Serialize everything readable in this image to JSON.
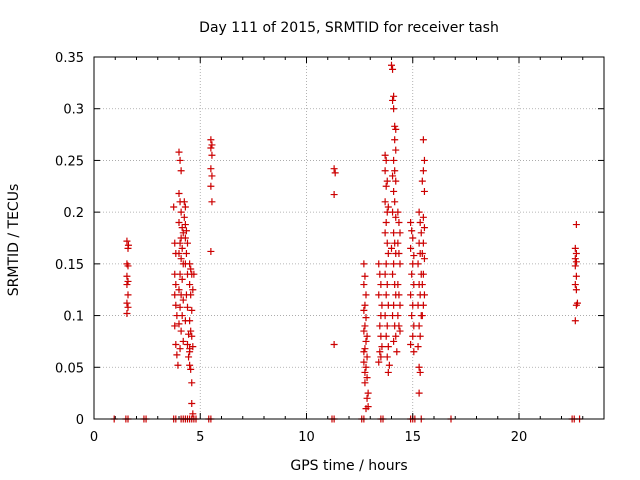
{
  "chart_data": {
    "type": "scatter",
    "title": "Day 111 of 2015, SRMTID for receiver tash",
    "xlabel": "GPS time / hours",
    "ylabel": "SRMTID / TECUs",
    "xlim": [
      0,
      24
    ],
    "ylim": [
      0,
      0.35
    ],
    "x_ticks": [
      0,
      5,
      10,
      15,
      20
    ],
    "x_tick_labels": [
      "0",
      "5",
      "10",
      "15",
      "20"
    ],
    "y_ticks": [
      0,
      0.05,
      0.1,
      0.15,
      0.2,
      0.25,
      0.3,
      0.35
    ],
    "y_tick_labels": [
      "0",
      "0.05",
      "0.1",
      "0.15",
      "0.2",
      "0.25",
      "0.3",
      "0.35"
    ],
    "grid": true,
    "marker": "+",
    "series": [
      {
        "name": "SRMTID",
        "color": "#cc0000",
        "points": [
          [
            0.95,
            0
          ],
          [
            1.5,
            0
          ],
          [
            1.6,
            0
          ],
          [
            2.35,
            0
          ],
          [
            2.45,
            0
          ],
          [
            3.75,
            0
          ],
          [
            3.85,
            0
          ],
          [
            4.1,
            0
          ],
          [
            4.2,
            0
          ],
          [
            4.3,
            0
          ],
          [
            4.4,
            0
          ],
          [
            4.5,
            0
          ],
          [
            4.6,
            0
          ],
          [
            4.7,
            0
          ],
          [
            4.8,
            0
          ],
          [
            5.4,
            0
          ],
          [
            5.5,
            0
          ],
          [
            11.2,
            0
          ],
          [
            11.3,
            0
          ],
          [
            12.6,
            0
          ],
          [
            12.7,
            0
          ],
          [
            13.5,
            0
          ],
          [
            13.6,
            0
          ],
          [
            14.9,
            0
          ],
          [
            15.0,
            0
          ],
          [
            15.1,
            0
          ],
          [
            15.4,
            0
          ],
          [
            16.8,
            0
          ],
          [
            22.5,
            0
          ],
          [
            22.6,
            0
          ],
          [
            22.85,
            0
          ],
          [
            1.55,
            0.172
          ],
          [
            1.6,
            0.165
          ],
          [
            1.55,
            0.15
          ],
          [
            1.6,
            0.148
          ],
          [
            1.55,
            0.138
          ],
          [
            1.6,
            0.133
          ],
          [
            1.55,
            0.13
          ],
          [
            1.6,
            0.12
          ],
          [
            1.55,
            0.112
          ],
          [
            1.6,
            0.108
          ],
          [
            1.55,
            0.102
          ],
          [
            1.62,
            0.168
          ],
          [
            3.75,
            0.205
          ],
          [
            3.8,
            0.17
          ],
          [
            3.85,
            0.16
          ],
          [
            3.8,
            0.14
          ],
          [
            3.85,
            0.13
          ],
          [
            3.8,
            0.12
          ],
          [
            3.85,
            0.11
          ],
          [
            3.9,
            0.1
          ],
          [
            3.8,
            0.09
          ],
          [
            3.85,
            0.072
          ],
          [
            3.9,
            0.062
          ],
          [
            3.95,
            0.052
          ],
          [
            4.0,
            0.258
          ],
          [
            4.05,
            0.25
          ],
          [
            4.1,
            0.24
          ],
          [
            4.0,
            0.218
          ],
          [
            4.05,
            0.21
          ],
          [
            4.1,
            0.2
          ],
          [
            4.0,
            0.19
          ],
          [
            4.15,
            0.185
          ],
          [
            4.2,
            0.18
          ],
          [
            4.1,
            0.175
          ],
          [
            4.05,
            0.17
          ],
          [
            4.15,
            0.165
          ],
          [
            4.0,
            0.16
          ],
          [
            4.1,
            0.155
          ],
          [
            4.2,
            0.15
          ],
          [
            4.05,
            0.14
          ],
          [
            4.15,
            0.135
          ],
          [
            4.0,
            0.125
          ],
          [
            4.1,
            0.12
          ],
          [
            4.2,
            0.115
          ],
          [
            4.05,
            0.108
          ],
          [
            4.15,
            0.1
          ],
          [
            4.0,
            0.092
          ],
          [
            4.1,
            0.085
          ],
          [
            4.2,
            0.075
          ],
          [
            4.05,
            0.068
          ],
          [
            4.25,
            0.21
          ],
          [
            4.3,
            0.205
          ],
          [
            4.25,
            0.195
          ],
          [
            4.3,
            0.188
          ],
          [
            4.35,
            0.182
          ],
          [
            4.3,
            0.175
          ],
          [
            4.4,
            0.17
          ],
          [
            4.35,
            0.16
          ],
          [
            4.3,
            0.15
          ],
          [
            4.4,
            0.14
          ],
          [
            4.35,
            0.12
          ],
          [
            4.4,
            0.108
          ],
          [
            4.3,
            0.095
          ],
          [
            4.45,
            0.082
          ],
          [
            4.4,
            0.072
          ],
          [
            4.5,
            0.068
          ],
          [
            4.45,
            0.06
          ],
          [
            4.5,
            0.052
          ],
          [
            4.55,
            0.048
          ],
          [
            4.6,
            0.035
          ],
          [
            4.6,
            0.015
          ],
          [
            4.65,
            0.005
          ],
          [
            4.5,
            0.15
          ],
          [
            4.55,
            0.145
          ],
          [
            4.6,
            0.14
          ],
          [
            4.5,
            0.13
          ],
          [
            4.55,
            0.12
          ],
          [
            4.6,
            0.105
          ],
          [
            4.5,
            0.095
          ],
          [
            4.55,
            0.085
          ],
          [
            4.6,
            0.08
          ],
          [
            4.65,
            0.07
          ],
          [
            4.5,
            0.065
          ],
          [
            4.7,
            0.14
          ],
          [
            4.65,
            0.125
          ],
          [
            5.5,
            0.27
          ],
          [
            5.55,
            0.265
          ],
          [
            5.5,
            0.262
          ],
          [
            5.55,
            0.255
          ],
          [
            5.5,
            0.242
          ],
          [
            5.55,
            0.235
          ],
          [
            5.5,
            0.225
          ],
          [
            5.55,
            0.21
          ],
          [
            5.5,
            0.162
          ],
          [
            11.3,
            0.242
          ],
          [
            11.35,
            0.238
          ],
          [
            11.3,
            0.217
          ],
          [
            11.3,
            0.072
          ],
          [
            12.7,
            0.15
          ],
          [
            12.75,
            0.138
          ],
          [
            12.7,
            0.13
          ],
          [
            12.8,
            0.12
          ],
          [
            12.75,
            0.11
          ],
          [
            12.7,
            0.105
          ],
          [
            12.8,
            0.098
          ],
          [
            12.75,
            0.09
          ],
          [
            12.7,
            0.085
          ],
          [
            12.85,
            0.08
          ],
          [
            12.8,
            0.075
          ],
          [
            12.75,
            0.068
          ],
          [
            12.85,
            0.06
          ],
          [
            12.7,
            0.055
          ],
          [
            12.8,
            0.05
          ],
          [
            12.85,
            0.04
          ],
          [
            12.75,
            0.035
          ],
          [
            12.9,
            0.025
          ],
          [
            12.85,
            0.02
          ],
          [
            12.9,
            0.012
          ],
          [
            12.8,
            0.01
          ],
          [
            12.7,
            0.065
          ],
          [
            12.75,
            0.045
          ],
          [
            13.4,
            0.15
          ],
          [
            13.45,
            0.14
          ],
          [
            13.5,
            0.13
          ],
          [
            13.4,
            0.12
          ],
          [
            13.55,
            0.11
          ],
          [
            13.5,
            0.1
          ],
          [
            13.45,
            0.09
          ],
          [
            13.5,
            0.08
          ],
          [
            13.55,
            0.07
          ],
          [
            13.45,
            0.065
          ],
          [
            13.5,
            0.06
          ],
          [
            13.4,
            0.055
          ],
          [
            13.7,
            0.255
          ],
          [
            13.75,
            0.25
          ],
          [
            13.7,
            0.24
          ],
          [
            13.8,
            0.23
          ],
          [
            13.75,
            0.225
          ],
          [
            13.7,
            0.21
          ],
          [
            13.85,
            0.205
          ],
          [
            13.8,
            0.2
          ],
          [
            13.75,
            0.19
          ],
          [
            13.7,
            0.18
          ],
          [
            13.8,
            0.17
          ],
          [
            13.85,
            0.16
          ],
          [
            13.75,
            0.15
          ],
          [
            13.7,
            0.14
          ],
          [
            13.8,
            0.13
          ],
          [
            13.75,
            0.12
          ],
          [
            13.85,
            0.11
          ],
          [
            13.7,
            0.1
          ],
          [
            13.8,
            0.09
          ],
          [
            13.75,
            0.08
          ],
          [
            13.85,
            0.07
          ],
          [
            13.8,
            0.06
          ],
          [
            13.9,
            0.052
          ],
          [
            13.85,
            0.045
          ],
          [
            14.0,
            0.342
          ],
          [
            14.05,
            0.338
          ],
          [
            14.1,
            0.312
          ],
          [
            14.05,
            0.308
          ],
          [
            14.1,
            0.3
          ],
          [
            14.15,
            0.283
          ],
          [
            14.2,
            0.28
          ],
          [
            14.15,
            0.27
          ],
          [
            14.2,
            0.26
          ],
          [
            14.1,
            0.25
          ],
          [
            14.15,
            0.24
          ],
          [
            14.05,
            0.235
          ],
          [
            14.2,
            0.23
          ],
          [
            14.1,
            0.22
          ],
          [
            14.15,
            0.21
          ],
          [
            14.05,
            0.2
          ],
          [
            14.2,
            0.195
          ],
          [
            14.1,
            0.18
          ],
          [
            14.15,
            0.17
          ],
          [
            14.0,
            0.165
          ],
          [
            14.2,
            0.16
          ],
          [
            14.1,
            0.15
          ],
          [
            14.05,
            0.14
          ],
          [
            14.15,
            0.13
          ],
          [
            14.2,
            0.12
          ],
          [
            14.1,
            0.11
          ],
          [
            14.05,
            0.1
          ],
          [
            14.15,
            0.09
          ],
          [
            14.2,
            0.08
          ],
          [
            14.1,
            0.075
          ],
          [
            14.25,
            0.065
          ],
          [
            14.3,
            0.2
          ],
          [
            14.35,
            0.19
          ],
          [
            14.4,
            0.18
          ],
          [
            14.3,
            0.17
          ],
          [
            14.35,
            0.16
          ],
          [
            14.4,
            0.15
          ],
          [
            14.3,
            0.13
          ],
          [
            14.35,
            0.12
          ],
          [
            14.4,
            0.11
          ],
          [
            14.3,
            0.1
          ],
          [
            14.35,
            0.09
          ],
          [
            14.4,
            0.085
          ],
          [
            14.9,
            0.19
          ],
          [
            14.95,
            0.182
          ],
          [
            15.0,
            0.175
          ],
          [
            14.9,
            0.165
          ],
          [
            15.05,
            0.158
          ],
          [
            15.0,
            0.15
          ],
          [
            14.95,
            0.14
          ],
          [
            15.05,
            0.13
          ],
          [
            14.9,
            0.12
          ],
          [
            15.0,
            0.11
          ],
          [
            14.95,
            0.1
          ],
          [
            15.05,
            0.09
          ],
          [
            15.0,
            0.08
          ],
          [
            14.9,
            0.072
          ],
          [
            15.05,
            0.065
          ],
          [
            15.3,
            0.2
          ],
          [
            15.35,
            0.19
          ],
          [
            15.4,
            0.18
          ],
          [
            15.3,
            0.17
          ],
          [
            15.35,
            0.16
          ],
          [
            15.25,
            0.15
          ],
          [
            15.4,
            0.14
          ],
          [
            15.3,
            0.13
          ],
          [
            15.35,
            0.12
          ],
          [
            15.25,
            0.11
          ],
          [
            15.4,
            0.1
          ],
          [
            15.3,
            0.09
          ],
          [
            15.35,
            0.08
          ],
          [
            15.25,
            0.07
          ],
          [
            15.3,
            0.05
          ],
          [
            15.35,
            0.045
          ],
          [
            15.3,
            0.025
          ],
          [
            15.5,
            0.27
          ],
          [
            15.55,
            0.25
          ],
          [
            15.5,
            0.24
          ],
          [
            15.45,
            0.23
          ],
          [
            15.55,
            0.22
          ],
          [
            15.5,
            0.195
          ],
          [
            15.55,
            0.185
          ],
          [
            15.5,
            0.17
          ],
          [
            15.45,
            0.16
          ],
          [
            15.55,
            0.155
          ],
          [
            15.5,
            0.14
          ],
          [
            15.45,
            0.13
          ],
          [
            15.55,
            0.12
          ],
          [
            15.5,
            0.11
          ],
          [
            15.45,
            0.1
          ],
          [
            22.7,
            0.188
          ],
          [
            22.65,
            0.165
          ],
          [
            22.7,
            0.16
          ],
          [
            22.65,
            0.155
          ],
          [
            22.7,
            0.152
          ],
          [
            22.65,
            0.148
          ],
          [
            22.7,
            0.138
          ],
          [
            22.65,
            0.13
          ],
          [
            22.7,
            0.125
          ],
          [
            22.75,
            0.112
          ],
          [
            22.7,
            0.11
          ],
          [
            22.65,
            0.095
          ]
        ]
      }
    ]
  }
}
